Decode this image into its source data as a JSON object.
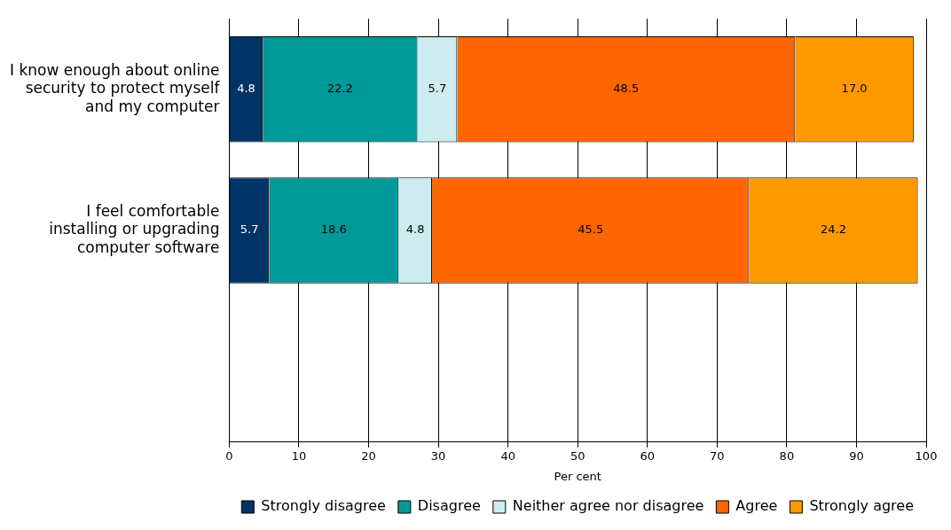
{
  "chart_data": {
    "type": "bar",
    "orientation": "horizontal",
    "stacked": true,
    "xlabel": "Per cent",
    "categories": [
      "I know enough about online security to protect myself and my computer",
      "I feel comfortable installing or upgrading computer software",
      null
    ],
    "series": [
      {
        "name": "Strongly disagree",
        "color": "#003366",
        "values": [
          4.8,
          5.7,
          null
        ],
        "value_labels": [
          "4.8",
          "5.7",
          null
        ]
      },
      {
        "name": "Disagree",
        "color": "#009999",
        "values": [
          22.2,
          18.6,
          null
        ],
        "value_labels": [
          "22.2",
          "18.6",
          null
        ]
      },
      {
        "name": "Neither agree nor disagree",
        "color": "#ccecf0",
        "values": [
          5.7,
          4.8,
          null
        ],
        "value_labels": [
          "5.7",
          "4.8",
          null
        ]
      },
      {
        "name": "Agree",
        "color": "#ff6600",
        "values": [
          48.5,
          45.5,
          null
        ],
        "value_labels": [
          "48.5",
          "45.5",
          null
        ]
      },
      {
        "name": "Strongly agree",
        "color": "#ff9900",
        "values": [
          17,
          24.2,
          null
        ],
        "value_labels": [
          "17.0",
          "24.2",
          null
        ]
      }
    ],
    "xlim": [
      0,
      100
    ],
    "xticks": [
      0,
      10,
      20,
      30,
      40,
      50,
      60,
      70,
      80,
      90,
      100
    ],
    "grid": "x",
    "legend": "bottom"
  }
}
